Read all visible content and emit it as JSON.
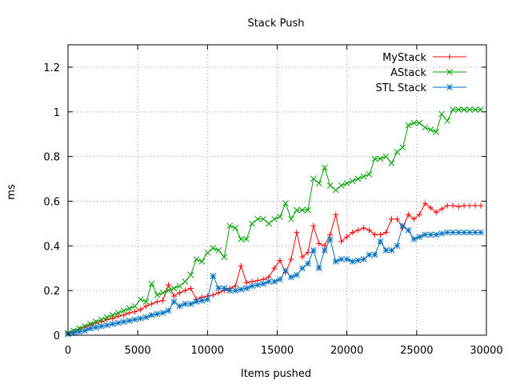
{
  "chart_data": {
    "type": "line",
    "title": "Stack Push",
    "xlabel": "Items pushed",
    "ylabel": "ms",
    "xlim": [
      0,
      30000
    ],
    "ylim": [
      0,
      1.3
    ],
    "xticks": [
      0,
      5000,
      10000,
      15000,
      20000,
      25000,
      30000
    ],
    "xtick_labels": [
      "0",
      "5000",
      "10000",
      "15000",
      "20000",
      "25000",
      "30000"
    ],
    "yticks": [
      0,
      0.2,
      0.4,
      0.6,
      0.8,
      1,
      1.2
    ],
    "ytick_labels": [
      "0",
      "0.2",
      "0.4",
      "0.6",
      "0.8",
      "1",
      "1.2"
    ],
    "grid": true,
    "legend_position": "top-right",
    "series": [
      {
        "name": "MyStack",
        "color": "#ff0000",
        "marker": "plus",
        "x": [
          0,
          400,
          800,
          1200,
          1600,
          2000,
          2400,
          2800,
          3200,
          3600,
          4000,
          4400,
          4800,
          5200,
          5600,
          6000,
          6400,
          6800,
          7200,
          7600,
          8000,
          8400,
          8800,
          9200,
          9600,
          10000,
          10400,
          10800,
          11200,
          11600,
          12000,
          12400,
          12800,
          13200,
          13600,
          14000,
          14400,
          14800,
          15200,
          15600,
          16000,
          16400,
          16800,
          17200,
          17600,
          18000,
          18400,
          18800,
          19200,
          19600,
          20000,
          20400,
          20800,
          21200,
          21600,
          22000,
          22400,
          22800,
          23200,
          23600,
          24000,
          24400,
          24800,
          25200,
          25600,
          26000,
          26400,
          26800,
          27200,
          27600,
          28000,
          28400,
          28800,
          29200,
          29600
        ],
        "values": [
          0.01,
          0.015,
          0.025,
          0.035,
          0.045,
          0.055,
          0.06,
          0.07,
          0.075,
          0.085,
          0.09,
          0.1,
          0.105,
          0.115,
          0.13,
          0.14,
          0.15,
          0.155,
          0.225,
          0.175,
          0.19,
          0.2,
          0.21,
          0.16,
          0.17,
          0.175,
          0.18,
          0.19,
          0.2,
          0.21,
          0.22,
          0.31,
          0.235,
          0.24,
          0.245,
          0.25,
          0.26,
          0.3,
          0.335,
          0.28,
          0.34,
          0.46,
          0.35,
          0.37,
          0.49,
          0.41,
          0.4,
          0.45,
          0.54,
          0.42,
          0.44,
          0.46,
          0.47,
          0.48,
          0.47,
          0.45,
          0.45,
          0.46,
          0.52,
          0.52,
          0.48,
          0.54,
          0.52,
          0.54,
          0.59,
          0.57,
          0.55,
          0.565,
          0.58,
          0.58,
          0.575,
          0.58,
          0.58,
          0.58,
          0.58
        ]
      },
      {
        "name": "AStack",
        "color": "#00a000",
        "marker": "cross",
        "x": [
          0,
          400,
          800,
          1200,
          1600,
          2000,
          2400,
          2800,
          3200,
          3600,
          4000,
          4400,
          4800,
          5200,
          5600,
          6000,
          6400,
          6800,
          7200,
          7600,
          8000,
          8400,
          8800,
          9200,
          9600,
          10000,
          10400,
          10800,
          11200,
          11600,
          12000,
          12400,
          12800,
          13200,
          13600,
          14000,
          14400,
          14800,
          15200,
          15600,
          16000,
          16400,
          16800,
          17200,
          17600,
          18000,
          18400,
          18800,
          19200,
          19600,
          20000,
          20400,
          20800,
          21200,
          21600,
          22000,
          22400,
          22800,
          23200,
          23600,
          24000,
          24400,
          24800,
          25200,
          25600,
          26000,
          26400,
          26800,
          27200,
          27600,
          28000,
          28400,
          28800,
          29200,
          29600
        ],
        "values": [
          0.01,
          0.02,
          0.03,
          0.04,
          0.05,
          0.06,
          0.07,
          0.08,
          0.09,
          0.1,
          0.11,
          0.12,
          0.13,
          0.16,
          0.15,
          0.23,
          0.18,
          0.19,
          0.2,
          0.21,
          0.22,
          0.24,
          0.27,
          0.34,
          0.33,
          0.37,
          0.39,
          0.38,
          0.35,
          0.49,
          0.48,
          0.43,
          0.43,
          0.5,
          0.52,
          0.52,
          0.5,
          0.52,
          0.53,
          0.59,
          0.52,
          0.56,
          0.56,
          0.56,
          0.7,
          0.68,
          0.75,
          0.67,
          0.65,
          0.67,
          0.68,
          0.69,
          0.7,
          0.71,
          0.72,
          0.79,
          0.79,
          0.8,
          0.77,
          0.82,
          0.84,
          0.94,
          0.95,
          0.95,
          0.93,
          0.92,
          0.91,
          0.99,
          0.96,
          1.01,
          1.01,
          1.01,
          1.01,
          1.01,
          1.01
        ]
      },
      {
        "name": "STL Stack",
        "color": "#0070c0",
        "marker": "star",
        "x": [
          0,
          400,
          800,
          1200,
          1600,
          2000,
          2400,
          2800,
          3200,
          3600,
          4000,
          4400,
          4800,
          5200,
          5600,
          6000,
          6400,
          6800,
          7200,
          7600,
          8000,
          8400,
          8800,
          9200,
          9600,
          10000,
          10400,
          10800,
          11200,
          11600,
          12000,
          12400,
          12800,
          13200,
          13600,
          14000,
          14400,
          14800,
          15200,
          15600,
          16000,
          16400,
          16800,
          17200,
          17600,
          18000,
          18400,
          18800,
          19200,
          19600,
          20000,
          20400,
          20800,
          21200,
          21600,
          22000,
          22400,
          22800,
          23200,
          23600,
          24000,
          24400,
          24800,
          25200,
          25600,
          26000,
          26400,
          26800,
          27200,
          27600,
          28000,
          28400,
          28800,
          29200,
          29600
        ],
        "values": [
          0.005,
          0.01,
          0.015,
          0.02,
          0.03,
          0.035,
          0.04,
          0.045,
          0.05,
          0.055,
          0.06,
          0.065,
          0.07,
          0.075,
          0.08,
          0.09,
          0.095,
          0.1,
          0.11,
          0.15,
          0.13,
          0.14,
          0.14,
          0.15,
          0.155,
          0.16,
          0.265,
          0.21,
          0.21,
          0.2,
          0.2,
          0.205,
          0.21,
          0.22,
          0.225,
          0.23,
          0.24,
          0.24,
          0.25,
          0.29,
          0.26,
          0.27,
          0.3,
          0.32,
          0.38,
          0.3,
          0.38,
          0.43,
          0.33,
          0.34,
          0.34,
          0.33,
          0.335,
          0.34,
          0.36,
          0.36,
          0.42,
          0.38,
          0.38,
          0.4,
          0.49,
          0.47,
          0.43,
          0.44,
          0.45,
          0.45,
          0.45,
          0.455,
          0.46,
          0.46,
          0.46,
          0.46,
          0.46,
          0.46,
          0.46
        ]
      }
    ]
  }
}
